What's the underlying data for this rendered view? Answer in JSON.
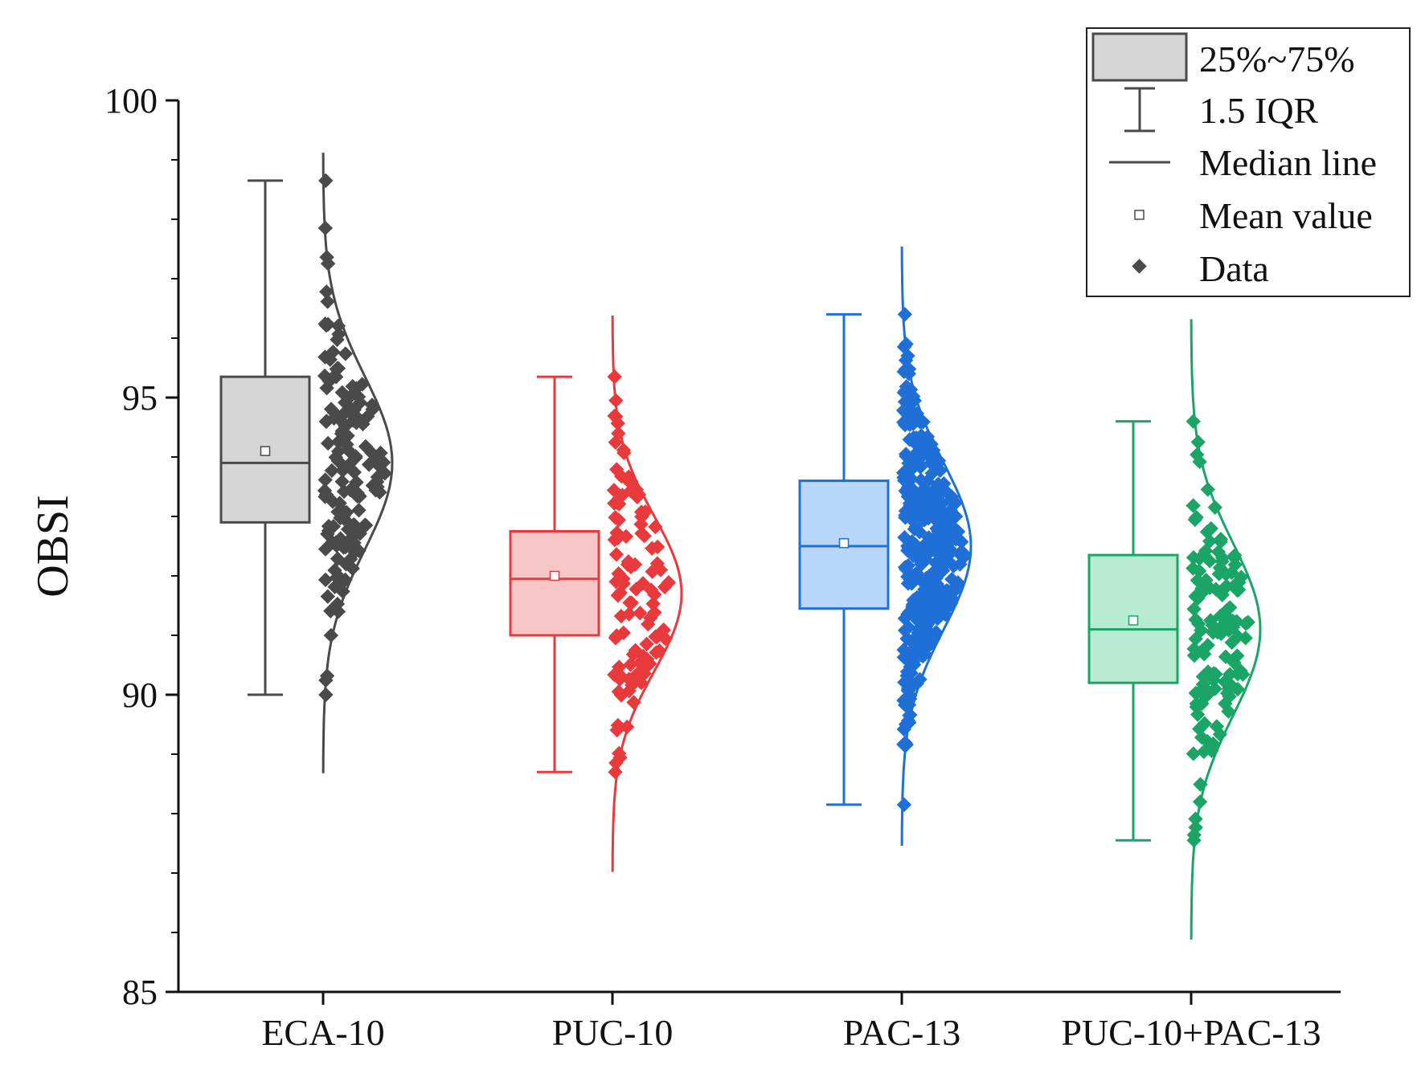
{
  "chart_data": {
    "type": "box",
    "ylabel": "OBSI",
    "xlabel": "",
    "ylim": [
      85,
      100
    ],
    "yticks": [
      85,
      90,
      95,
      100
    ],
    "grid": false,
    "legend_position": "top-right",
    "legend": [
      {
        "key": "box",
        "label": "25%~75%"
      },
      {
        "key": "whisker",
        "label": "1.5 IQR"
      },
      {
        "key": "median",
        "label": "Median line"
      },
      {
        "key": "mean",
        "label": "Mean value"
      },
      {
        "key": "data",
        "label": "Data"
      }
    ],
    "series": [
      {
        "name": "ECA-10",
        "color": "#4a4a4a",
        "fill": "#d6d6d6",
        "whisker_low": 90.0,
        "q1": 92.9,
        "median": 93.9,
        "q3": 95.35,
        "whisker_high": 98.65,
        "mean": 94.1,
        "dist_mean": 93.9,
        "dist_sd": 1.45,
        "n_points": 150,
        "seed": 11
      },
      {
        "name": "PUC-10",
        "color": "#e8393d",
        "fill": "#f9c6c8",
        "whisker_low": 88.7,
        "q1": 91.0,
        "median": 91.95,
        "q3": 92.75,
        "whisker_high": 95.35,
        "mean": 92.0,
        "dist_mean": 91.7,
        "dist_sd": 1.3,
        "n_points": 110,
        "seed": 23
      },
      {
        "name": "PAC-13",
        "color": "#1f6fd6",
        "fill": "#b8d6f7",
        "whisker_low": 88.15,
        "q1": 91.45,
        "median": 92.5,
        "q3": 93.6,
        "whisker_high": 96.4,
        "mean": 92.55,
        "dist_mean": 92.5,
        "dist_sd": 1.4,
        "n_points": 380,
        "seed": 37
      },
      {
        "name": "PUC-10+PAC-13",
        "color": "#1aa566",
        "fill": "#b7ecd2",
        "whisker_low": 87.55,
        "q1": 90.2,
        "median": 91.1,
        "q3": 92.35,
        "whisker_high": 94.6,
        "mean": 91.25,
        "dist_mean": 91.1,
        "dist_sd": 1.45,
        "n_points": 130,
        "seed": 53
      }
    ]
  }
}
